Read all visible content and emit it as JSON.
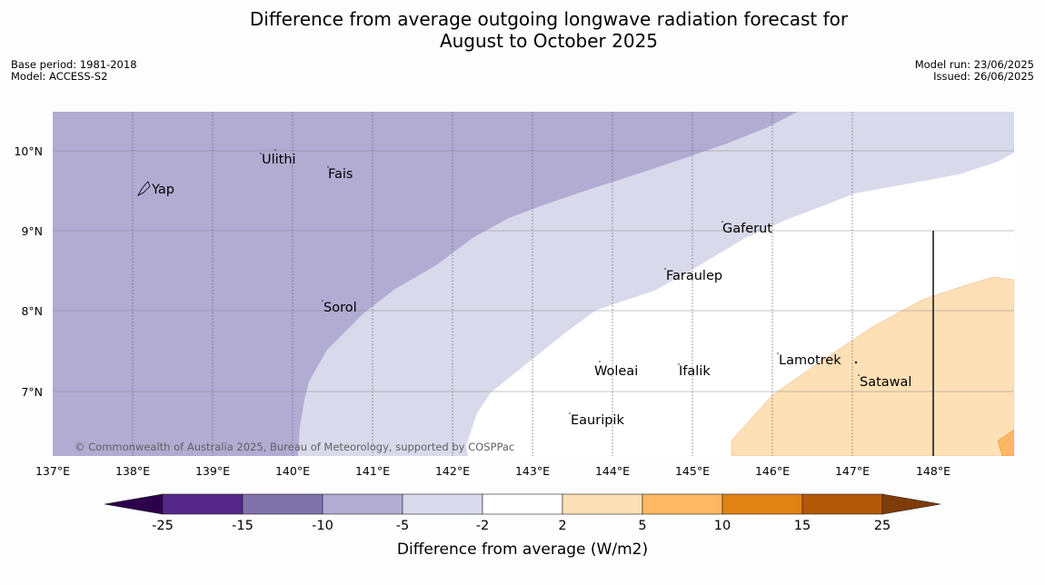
{
  "title_line1": "Difference from average outgoing longwave radiation forecast for",
  "title_line2": "August to October 2025",
  "meta": {
    "base_period": "Base period: 1981-2018",
    "model": "Model: ACCESS-S2",
    "model_run": "Model run: 23/06/2025",
    "issued": "Issued: 26/06/2025"
  },
  "map": {
    "lon_ticks": [
      "137°E",
      "138°E",
      "139°E",
      "140°E",
      "141°E",
      "142°E",
      "143°E",
      "144°E",
      "145°E",
      "146°E",
      "147°E",
      "148°E"
    ],
    "lat_ticks": [
      "10°N",
      "9°N",
      "8°N",
      "7°N"
    ],
    "places": [
      "Ulithi",
      "Fais",
      "Yap",
      "Gaferut",
      "Faraulep",
      "Sorol",
      "Woleai",
      "Ifalik",
      "Lamotrek",
      "Satawal",
      "Eauripik"
    ],
    "copyright": "© Commonwealth of Australia 2025, Bureau of Meteorology, supported by COSPPac"
  },
  "legend": {
    "ticks": [
      "-25",
      "-15",
      "-10",
      "-5",
      "-2",
      "2",
      "5",
      "10",
      "15",
      "25"
    ],
    "colors": [
      "#2d004b",
      "#542788",
      "#8073ac",
      "#b2abd2",
      "#d8daeb",
      "#ffffff",
      "#fee0b6",
      "#fdb863",
      "#e08214",
      "#b35806",
      "#7f3b08"
    ],
    "label": "Difference from average (W/m2)"
  }
}
